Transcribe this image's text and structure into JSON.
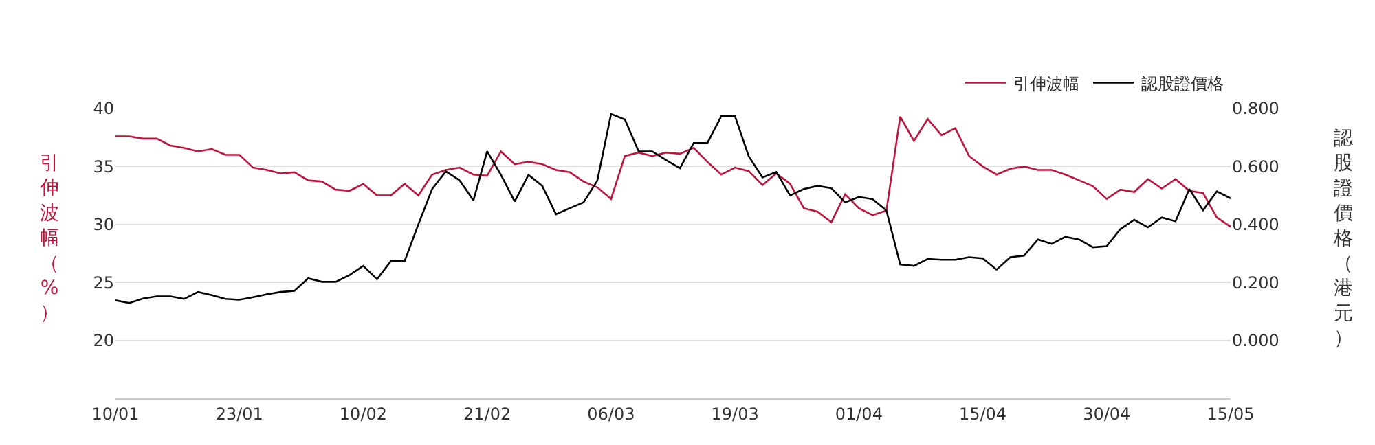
{
  "chart_data": {
    "type": "line",
    "categories": [
      "10/01",
      null,
      null,
      null,
      null,
      null,
      null,
      null,
      null,
      "23/01",
      null,
      null,
      null,
      null,
      null,
      null,
      null,
      null,
      "10/02",
      null,
      null,
      null,
      null,
      null,
      null,
      null,
      null,
      "21/02",
      null,
      null,
      null,
      null,
      null,
      null,
      null,
      null,
      "06/03",
      null,
      null,
      null,
      null,
      null,
      null,
      null,
      null,
      "19/03",
      null,
      null,
      null,
      null,
      null,
      null,
      null,
      null,
      "01/04",
      null,
      null,
      null,
      null,
      null,
      null,
      null,
      null,
      "15/04",
      null,
      null,
      null,
      null,
      null,
      null,
      null,
      null,
      "30/04",
      null,
      null,
      null,
      null,
      null,
      null,
      null,
      null,
      "15/05"
    ],
    "ylabel": "引伸波幅（%）",
    "y2label": "認股證價格（港元）",
    "series": [
      {
        "name": "引伸波幅",
        "color": "#c0143c",
        "values": [
          37.6,
          37.6,
          37.4,
          37.4,
          36.8,
          36.6,
          36.3,
          36.5,
          36.0,
          36.0,
          34.9,
          34.7,
          34.4,
          34.5,
          33.8,
          33.7,
          33.0,
          32.9,
          33.5,
          32.5,
          32.5,
          33.5,
          32.5,
          34.3,
          34.7,
          34.9,
          34.3,
          34.2,
          36.3,
          35.2,
          35.4,
          35.2,
          34.7,
          34.5,
          33.7,
          33.2,
          32.2,
          35.9,
          36.2,
          35.9,
          36.2,
          36.1,
          36.6,
          35.4,
          34.3,
          34.9,
          34.6,
          33.4,
          34.4,
          33.5,
          31.4,
          31.1,
          30.2,
          32.6,
          31.4,
          30.8,
          31.2,
          39.3,
          37.2,
          39.1,
          37.7,
          38.3,
          35.9,
          35.0,
          34.3,
          34.8,
          35.0,
          34.7,
          34.7,
          34.3,
          33.8,
          33.3,
          32.2,
          33.0,
          32.8,
          33.9,
          33.1,
          33.9,
          32.9,
          32.7,
          30.6,
          29.8
        ]
      },
      {
        "name": "認股證價格",
        "color": "#000000",
        "axis": "y2",
        "values": [
          0.138,
          0.129,
          0.144,
          0.152,
          0.152,
          0.143,
          0.167,
          0.156,
          0.143,
          0.14,
          0.149,
          0.159,
          0.167,
          0.171,
          0.214,
          0.202,
          0.202,
          0.225,
          0.257,
          0.211,
          0.273,
          0.273,
          0.4,
          0.522,
          0.583,
          0.552,
          0.483,
          0.652,
          0.571,
          0.479,
          0.571,
          0.533,
          0.435,
          0.456,
          0.476,
          0.551,
          0.781,
          0.762,
          0.652,
          0.652,
          0.622,
          0.594,
          0.681,
          0.681,
          0.773,
          0.773,
          0.635,
          0.562,
          0.581,
          0.5,
          0.522,
          0.533,
          0.525,
          0.476,
          0.495,
          0.487,
          0.448,
          0.262,
          0.257,
          0.281,
          0.278,
          0.278,
          0.287,
          0.283,
          0.244,
          0.287,
          0.292,
          0.348,
          0.333,
          0.357,
          0.348,
          0.321,
          0.325,
          0.384,
          0.416,
          0.39,
          0.424,
          0.411,
          0.522,
          0.449,
          0.514,
          0.49
        ]
      }
    ],
    "ylim": [
      15,
      40
    ],
    "yticks": [
      20,
      25,
      30,
      35,
      40
    ],
    "y2lim": [
      -0.2,
      0.8
    ],
    "y2ticks": [
      {
        "value": 0,
        "label": "0.000"
      },
      {
        "value": 0.2,
        "label": "0.200"
      },
      {
        "value": 0.4,
        "label": "0.400"
      },
      {
        "value": 0.6,
        "label": "0.600"
      },
      {
        "value": 0.8,
        "label": "0.800"
      }
    ],
    "grid": "y",
    "legend": "top right",
    "marker": "none",
    "line_style": "solid"
  }
}
